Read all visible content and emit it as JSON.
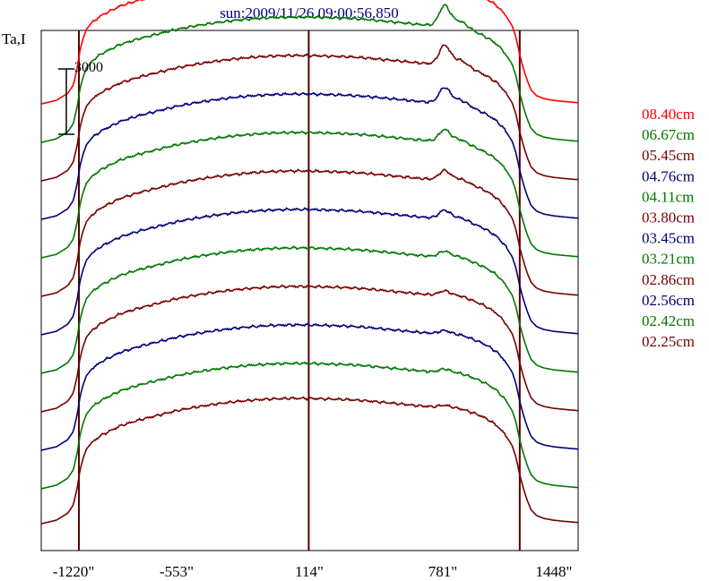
{
  "chart_data": {
    "type": "line",
    "title": "sun:2009/11/26 09:00:56.850",
    "ylabel": "Ta,I",
    "scale_bar_label": "3000",
    "x_ticks": [
      "-1220\"",
      "-553\"",
      "114\"",
      "781\"",
      "1448\""
    ],
    "xlim": [
      -1420,
      1430
    ],
    "grid": false,
    "legend_position": "right",
    "series": [
      {
        "name": "08.40cm",
        "color": "#ff0000",
        "offset": 36000,
        "limb_shift": 0,
        "peak": 2100
      },
      {
        "name": "06.67cm",
        "color": "#007700",
        "offset": 32700,
        "limb_shift": 0,
        "peak": 1700
      },
      {
        "name": "05.45cm",
        "color": "#770000",
        "offset": 29400,
        "limb_shift": 0,
        "peak": 1600
      },
      {
        "name": "04.76cm",
        "color": "#000077",
        "offset": 26100,
        "limb_shift": 0,
        "peak": 1300
      },
      {
        "name": "04.11cm",
        "color": "#007700",
        "offset": 22800,
        "limb_shift": 0,
        "peak": 1000
      },
      {
        "name": "03.80cm",
        "color": "#770000",
        "offset": 19500,
        "limb_shift": 0,
        "peak": 800
      },
      {
        "name": "03.45cm",
        "color": "#000077",
        "offset": 16200,
        "limb_shift": 0,
        "peak": 700
      },
      {
        "name": "03.21cm",
        "color": "#007700",
        "offset": 12900,
        "limb_shift": 0,
        "peak": 500
      },
      {
        "name": "02.86cm",
        "color": "#770000",
        "offset": 9600,
        "limb_shift": 0,
        "peak": 400
      },
      {
        "name": "02.56cm",
        "color": "#000077",
        "offset": 6300,
        "limb_shift": 0,
        "peak": 300
      },
      {
        "name": "02.42cm",
        "color": "#007700",
        "offset": 3000,
        "limb_shift": 0,
        "peak": 300
      },
      {
        "name": "02.25cm",
        "color": "#770000",
        "offset": 0,
        "limb_shift": 0,
        "peak": 200
      }
    ],
    "vertical_lines": [
      -1220,
      0,
      1120
    ],
    "profile": {
      "x": [
        -1420,
        -1340,
        -1280,
        -1250,
        -1230,
        -1215,
        -1200,
        -1180,
        -1150,
        -1100,
        -1000,
        -900,
        -800,
        -700,
        -600,
        -500,
        -400,
        -300,
        -200,
        -100,
        0,
        100,
        200,
        300,
        400,
        500,
        560,
        600,
        640,
        680,
        720,
        760,
        800,
        840,
        880,
        920,
        960,
        1000,
        1040,
        1080,
        1100,
        1120,
        1140,
        1160,
        1180,
        1210,
        1250,
        1300,
        1360,
        1430
      ],
      "y": [
        0,
        300,
        900,
        1600,
        3000,
        4500,
        5500,
        6400,
        7000,
        7600,
        8400,
        8900,
        9300,
        9700,
        10000,
        10250,
        10450,
        10600,
        10700,
        10750,
        10750,
        10700,
        10650,
        10550,
        10400,
        10250,
        10150,
        10100,
        10050,
        10000,
        9950,
        9900,
        9800,
        9650,
        9450,
        9200,
        8850,
        8400,
        7700,
        6700,
        5700,
        4200,
        3000,
        2000,
        1200,
        700,
        450,
        300,
        200,
        100
      ]
    },
    "peak_shape": {
      "center": 720,
      "width": 40,
      "shoulder_center": 800,
      "shoulder_width": 60,
      "shoulder_ratio": 0.35
    },
    "ylim": [
      -2300,
      42300
    ]
  }
}
